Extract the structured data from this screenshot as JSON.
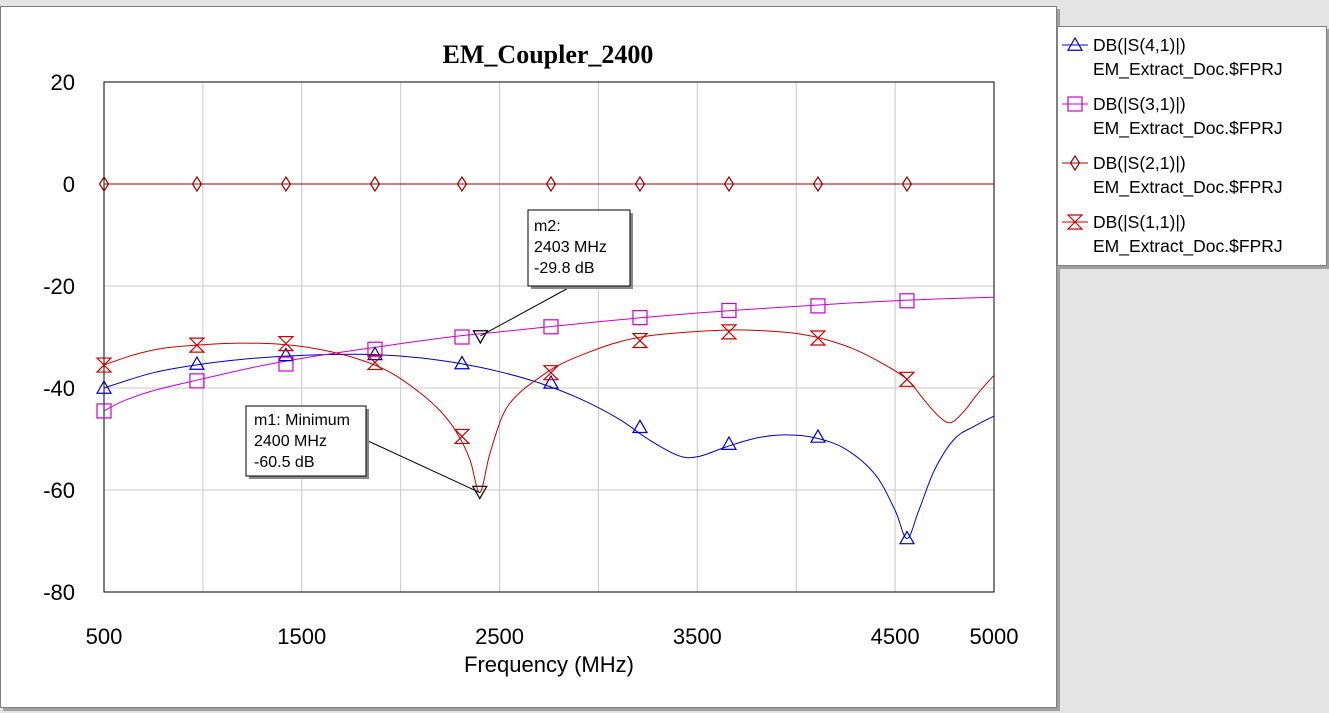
{
  "chart_data": {
    "type": "line",
    "title": "EM_Coupler_2400",
    "xlabel": "Frequency (MHz)",
    "ylabel": "",
    "xlim": [
      500,
      5000
    ],
    "ylim": [
      -80,
      20
    ],
    "x_ticks": [
      500,
      1500,
      2500,
      3500,
      4500,
      5000
    ],
    "y_ticks": [
      20,
      0,
      -20,
      -40,
      -60,
      -80
    ],
    "x_grid": [
      500,
      1000,
      1500,
      2000,
      2500,
      3000,
      3500,
      4000,
      4500,
      5000
    ],
    "y_grid": [
      20,
      0,
      -20,
      -40,
      -60,
      -80
    ],
    "grid": true,
    "legend_position": "right",
    "series": [
      {
        "name": "DB(|S(4,1)|)",
        "source": "EM_Extract_Doc.$FPRJ",
        "color": "#0000cc",
        "marker": "triangle-up",
        "x": [
          500,
          750,
          1000,
          1250,
          1500,
          1750,
          1900,
          2100,
          2300,
          2500,
          2700,
          2900,
          3100,
          3250,
          3400,
          3500,
          3650,
          3800,
          3950,
          4100,
          4250,
          4400,
          4500,
          4560,
          4620,
          4700,
          4800,
          4900,
          5000
        ],
        "y": [
          -40,
          -37,
          -35.3,
          -34.2,
          -33.6,
          -33.4,
          -33.5,
          -34.1,
          -35.2,
          -36.8,
          -39,
          -42,
          -46,
          -50,
          -53.2,
          -53.5,
          -51.5,
          -49.8,
          -49.2,
          -49.8,
          -52,
          -57,
          -64,
          -69.5,
          -64,
          -56,
          -50,
          -47.5,
          -45.5
        ],
        "markers": {
          "x": [
            500,
            970,
            1420,
            1870,
            2310,
            2760,
            3210,
            3660,
            4110,
            4560
          ],
          "y": [
            -40,
            -35.3,
            -33.6,
            -33.4,
            -35.2,
            -39,
            -47.7,
            -51,
            -49.6,
            -69.5
          ]
        }
      },
      {
        "name": "DB(|S(3,1)|)",
        "source": "EM_Extract_Doc.$FPRJ",
        "color": "#cc00cc",
        "marker": "square",
        "x": [
          500,
          600,
          750,
          1000,
          1250,
          1500,
          1750,
          2000,
          2250,
          2500,
          2750,
          3000,
          3250,
          3500,
          3750,
          4000,
          4250,
          4500,
          4750,
          5000
        ],
        "y": [
          -44.5,
          -42.5,
          -40.5,
          -38.2,
          -36,
          -34.2,
          -32.7,
          -31.3,
          -30,
          -29,
          -28,
          -27,
          -26.1,
          -25.3,
          -24.6,
          -24,
          -23.4,
          -22.9,
          -22.5,
          -22.2
        ],
        "markers": {
          "x": [
            500,
            970,
            1420,
            1870,
            2310,
            2760,
            3210,
            3660,
            4110,
            4560
          ],
          "y": [
            -44.5,
            -38.6,
            -35.3,
            -32.4,
            -30,
            -28,
            -26.2,
            -24.8,
            -23.9,
            -22.9
          ]
        }
      },
      {
        "name": "DB(|S(2,1)|)",
        "source": "EM_Extract_Doc.$FPRJ",
        "color": "#990000",
        "marker": "diamond",
        "x": [
          500,
          5000
        ],
        "y": [
          0,
          0
        ],
        "markers": {
          "x": [
            500,
            970,
            1420,
            1870,
            2310,
            2760,
            3210,
            3660,
            4110,
            4560
          ],
          "y": [
            0,
            0,
            0,
            0,
            0,
            0,
            0,
            0,
            0,
            0
          ]
        }
      },
      {
        "name": "DB(|S(1,1)|)",
        "source": "EM_Extract_Doc.$FPRJ",
        "color": "#cc0000",
        "marker": "hourglass",
        "x": [
          500,
          650,
          800,
          1000,
          1200,
          1420,
          1600,
          1800,
          1950,
          2100,
          2200,
          2280,
          2350,
          2400,
          2450,
          2520,
          2600,
          2700,
          2800,
          2950,
          3100,
          3250,
          3400,
          3550,
          3700,
          3850,
          4000,
          4150,
          4300,
          4450,
          4560,
          4650,
          4720,
          4780,
          4850,
          4920,
          5000
        ],
        "y": [
          -35.5,
          -33.5,
          -32.2,
          -31.5,
          -31.2,
          -31.5,
          -32.5,
          -34.5,
          -37,
          -41,
          -44.5,
          -48.5,
          -54,
          -60.5,
          -53,
          -45,
          -41,
          -38,
          -35.5,
          -33,
          -31,
          -29.8,
          -29.2,
          -28.8,
          -28.6,
          -28.8,
          -29.3,
          -30.5,
          -32.5,
          -35.5,
          -38.3,
          -42.5,
          -45.5,
          -46.8,
          -44.5,
          -41,
          -37.5
        ],
        "markers": {
          "x": [
            500,
            970,
            1420,
            1870,
            2310,
            2760,
            3210,
            3660,
            4110,
            4560
          ],
          "y": [
            -35.5,
            -31.6,
            -31.3,
            -35,
            -49.5,
            -37,
            -30.7,
            -29,
            -30.2,
            -38.3
          ]
        }
      }
    ],
    "annotations": [
      {
        "id": "m1",
        "lines": [
          "m1: Minimum",
          "2400 MHz",
          "-60.5 dB"
        ],
        "point": [
          2400,
          -60.5
        ],
        "box_anchor": "left-middle",
        "box_position": "left of point"
      },
      {
        "id": "m2",
        "lines": [
          "m2:",
          "2403 MHz",
          "-29.8 dB"
        ],
        "point": [
          2403,
          -29.8
        ],
        "box_anchor": "upper-middle",
        "box_position": "above-right of point"
      }
    ]
  }
}
